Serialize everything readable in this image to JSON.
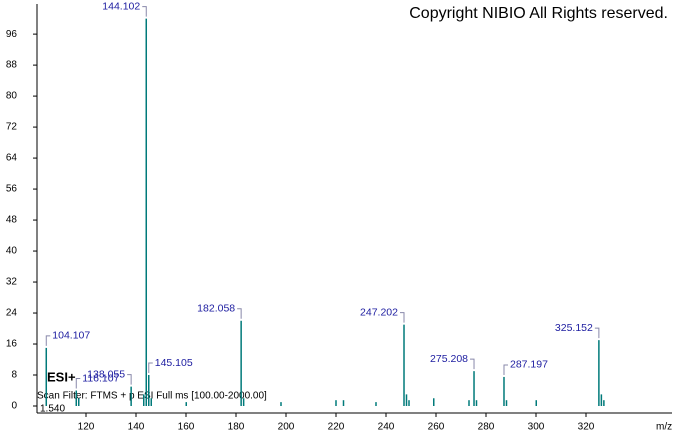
{
  "copyright": "Copyright NIBIO All Rights reserved.",
  "ionization": "ESI+",
  "scan_filter": "Scan Filter: FTMS + p ESI Full ms [100.00-2000.00]",
  "retention_time": "1.540",
  "chart_data": {
    "type": "stem",
    "x_label": "m/z",
    "color": "#007a7a",
    "xlim": [
      100,
      354
    ],
    "ylim": [
      0,
      103
    ],
    "xticks": [
      120,
      140,
      160,
      180,
      200,
      220,
      240,
      260,
      280,
      300,
      320
    ],
    "yticks": [
      0,
      8,
      16,
      24,
      32,
      40,
      48,
      56,
      64,
      72,
      80,
      88,
      96
    ],
    "x": [
      104.107,
      116.107,
      117.1,
      138.055,
      143.1,
      144.102,
      145.105,
      146.1,
      160.1,
      182.058,
      183.06,
      198,
      220,
      223,
      236,
      247.202,
      248.2,
      249.2,
      259.1,
      273.2,
      275.208,
      276.2,
      287.197,
      288.2,
      300.1,
      325.152,
      326.15,
      327.15
    ],
    "values": [
      15,
      4,
      2,
      5,
      3,
      100,
      8,
      2,
      1,
      22,
      2,
      1,
      1.5,
      1.5,
      1,
      21,
      3,
      1.5,
      2,
      1.5,
      9,
      1.5,
      7.5,
      1.5,
      1.5,
      17,
      3,
      1.5
    ],
    "labels": [
      "104.107",
      "116.107",
      null,
      "138.055",
      null,
      "144.102",
      "145.105",
      null,
      null,
      "182.058",
      null,
      null,
      null,
      null,
      null,
      "247.202",
      null,
      null,
      null,
      null,
      "275.208",
      null,
      "287.197",
      null,
      null,
      "325.152",
      null,
      null
    ]
  }
}
